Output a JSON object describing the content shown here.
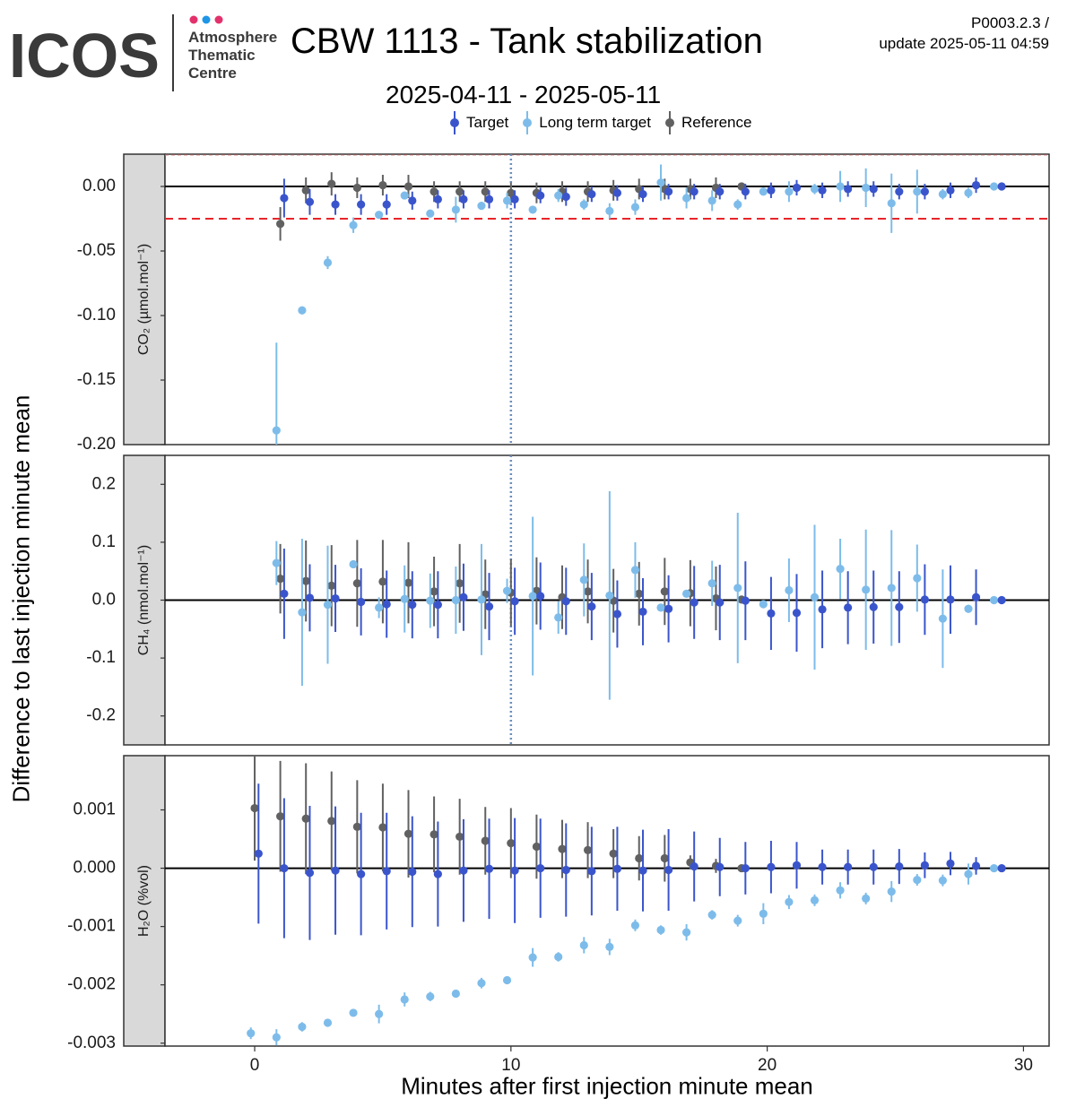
{
  "header": {
    "logo_text": "ICOS",
    "logo_dot_colors": [
      "#e2316b",
      "#1e96e6",
      "#e2316b"
    ],
    "logo_lines": [
      "Atmosphere",
      "Thematic",
      "Centre"
    ],
    "title": "CBW 1113 - Tank stabilization",
    "date_range": "2025-04-11 - 2025-05-11",
    "version": "P0003.2.3 /",
    "update": "update  2025-05-11 04:59"
  },
  "legend": [
    {
      "label": "Target",
      "color": "#3a55cc"
    },
    {
      "label": "Long term target",
      "color": "#7dbcea"
    },
    {
      "label": "Reference",
      "color": "#616161"
    }
  ],
  "chart_data": {
    "type": "scatter",
    "xlabel": "Minutes after first injection minute mean",
    "ylabel": "Difference to last injection minute mean",
    "xlim": [
      -3.5,
      31
    ],
    "x_ticks": [
      0,
      10,
      20,
      30
    ],
    "vline_x": 10,
    "series_offsets": {
      "Target": 0.15,
      "Long term target": -0.15,
      "Reference": 0
    },
    "panels": [
      {
        "name": "CO2",
        "strip_label": "CO₂ (µmol.mol⁻¹)",
        "ylim": [
          -0.2,
          0.025
        ],
        "ticks": [
          0.0,
          -0.05,
          -0.1,
          -0.15,
          -0.2
        ],
        "tick_labels": [
          "0.00",
          "-0.05",
          "-0.10",
          "-0.15",
          "-0.20"
        ],
        "threshold": -0.025,
        "series": [
          {
            "name": "Target",
            "x": [
              1,
              2,
              3,
              4,
              5,
              6,
              7,
              8,
              9,
              10,
              11,
              12,
              13,
              14,
              15,
              16,
              17,
              18,
              19,
              20,
              21,
              22,
              23,
              24,
              25,
              26,
              27,
              28,
              29
            ],
            "y": [
              -0.009,
              -0.012,
              -0.014,
              -0.014,
              -0.014,
              -0.011,
              -0.01,
              -0.01,
              -0.01,
              -0.01,
              -0.007,
              -0.008,
              -0.006,
              -0.005,
              -0.006,
              -0.004,
              -0.004,
              -0.004,
              -0.004,
              -0.003,
              -0.001,
              -0.003,
              -0.002,
              -0.002,
              -0.004,
              -0.004,
              -0.003,
              0.001,
              0.0
            ],
            "err": [
              0.015,
              0.01,
              0.008,
              0.008,
              0.008,
              0.007,
              0.007,
              0.007,
              0.007,
              0.007,
              0.006,
              0.007,
              0.006,
              0.006,
              0.006,
              0.006,
              0.006,
              0.006,
              0.006,
              0.006,
              0.006,
              0.006,
              0.006,
              0.006,
              0.006,
              0.006,
              0.006,
              0.006,
              0.0
            ]
          },
          {
            "name": "Long term target",
            "x": [
              1,
              2,
              3,
              4,
              5,
              6,
              7,
              8,
              9,
              10,
              11,
              12,
              13,
              14,
              15,
              16,
              17,
              18,
              19,
              20,
              21,
              22,
              23,
              24,
              25,
              26,
              27,
              28,
              29
            ],
            "y": [
              -0.189,
              -0.096,
              -0.059,
              -0.03,
              -0.022,
              -0.007,
              -0.021,
              -0.018,
              -0.015,
              -0.011,
              -0.018,
              -0.007,
              -0.014,
              -0.019,
              -0.016,
              0.003,
              -0.009,
              -0.011,
              -0.014,
              -0.004,
              -0.004,
              -0.002,
              0.0,
              -0.001,
              -0.013,
              -0.004,
              -0.006,
              -0.005,
              0.0
            ],
            "err": [
              0.068,
              0.003,
              0.005,
              0.006,
              0.003,
              0.003,
              0.003,
              0.01,
              0.003,
              0.006,
              0.003,
              0.005,
              0.004,
              0.006,
              0.006,
              0.014,
              0.008,
              0.008,
              0.004,
              0.003,
              0.008,
              0.004,
              0.012,
              0.015,
              0.023,
              0.017,
              0.004,
              0.004,
              0.0
            ]
          },
          {
            "name": "Reference",
            "x": [
              1,
              2,
              3,
              4,
              5,
              6,
              7,
              8,
              9,
              10,
              11,
              12,
              13,
              14,
              15,
              16,
              17,
              18,
              19
            ],
            "y": [
              -0.029,
              -0.003,
              0.002,
              -0.001,
              0.001,
              0.0,
              -0.004,
              -0.004,
              -0.004,
              -0.005,
              -0.005,
              -0.004,
              -0.004,
              -0.003,
              -0.002,
              -0.002,
              -0.002,
              -0.001,
              0.0
            ],
            "err": [
              0.013,
              0.01,
              0.009,
              0.008,
              0.008,
              0.009,
              0.008,
              0.008,
              0.008,
              0.008,
              0.008,
              0.008,
              0.008,
              0.008,
              0.008,
              0.008,
              0.008,
              0.008,
              0.003
            ]
          }
        ]
      },
      {
        "name": "CH4",
        "strip_label": "CH₄ (nmol.mol⁻¹)",
        "ylim": [
          -0.25,
          0.25
        ],
        "ticks": [
          0.2,
          0.1,
          0.0,
          -0.1,
          -0.2
        ],
        "tick_labels": [
          "0.2",
          "0.1",
          "0.0",
          "-0.1",
          "-0.2"
        ],
        "series": [
          {
            "name": "Target",
            "x": [
              1,
              2,
              3,
              4,
              5,
              6,
              7,
              8,
              9,
              10,
              11,
              12,
              13,
              14,
              15,
              16,
              17,
              18,
              19,
              20,
              21,
              22,
              23,
              24,
              25,
              26,
              27,
              28,
              29
            ],
            "y": [
              0.011,
              0.004,
              0.003,
              -0.003,
              -0.007,
              -0.008,
              -0.008,
              0.005,
              -0.011,
              -0.002,
              0.007,
              -0.002,
              -0.011,
              -0.024,
              -0.02,
              -0.015,
              -0.004,
              -0.004,
              -0.001,
              -0.023,
              -0.022,
              -0.016,
              -0.013,
              -0.012,
              -0.012,
              0.001,
              0.001,
              0.005,
              0.0
            ],
            "err": [
              0.078,
              0.058,
              0.058,
              0.058,
              0.058,
              0.058,
              0.058,
              0.058,
              0.058,
              0.058,
              0.058,
              0.058,
              0.058,
              0.058,
              0.058,
              0.058,
              0.063,
              0.065,
              0.068,
              0.063,
              0.067,
              0.067,
              0.063,
              0.063,
              0.062,
              0.061,
              0.059,
              0.048,
              0.0
            ]
          },
          {
            "name": "Long term target",
            "x": [
              1,
              2,
              3,
              4,
              5,
              6,
              7,
              8,
              9,
              10,
              11,
              12,
              13,
              14,
              15,
              16,
              17,
              18,
              19,
              20,
              21,
              22,
              23,
              24,
              25,
              26,
              27,
              28,
              29
            ],
            "y": [
              0.064,
              -0.021,
              -0.008,
              0.062,
              -0.013,
              0.002,
              -0.001,
              0.0,
              0.001,
              0.016,
              0.007,
              -0.03,
              0.035,
              0.008,
              0.052,
              -0.013,
              0.011,
              0.029,
              0.021,
              -0.007,
              0.017,
              0.005,
              0.054,
              0.018,
              0.021,
              0.038,
              -0.032,
              -0.015,
              0.0
            ],
            "err": [
              0.038,
              0.127,
              0.102,
              0.004,
              0.018,
              0.058,
              0.047,
              0.058,
              0.096,
              0.021,
              0.137,
              0.028,
              0.063,
              0.18,
              0.048,
              0.004,
              0.004,
              0.039,
              0.13,
              0.007,
              0.055,
              0.125,
              0.052,
              0.104,
              0.1,
              0.058,
              0.085,
              0.007,
              0.0
            ]
          },
          {
            "name": "Reference",
            "x": [
              1,
              2,
              3,
              4,
              5,
              6,
              7,
              8,
              9,
              10,
              11,
              12,
              13,
              14,
              15,
              16,
              17,
              18,
              19
            ],
            "y": [
              0.037,
              0.033,
              0.025,
              0.029,
              0.032,
              0.03,
              0.015,
              0.029,
              0.01,
              0.013,
              0.016,
              0.005,
              0.015,
              -0.001,
              0.011,
              0.015,
              0.012,
              0.003,
              0.001
            ],
            "err": [
              0.06,
              0.07,
              0.07,
              0.075,
              0.072,
              0.07,
              0.06,
              0.068,
              0.06,
              0.058,
              0.058,
              0.055,
              0.055,
              0.055,
              0.055,
              0.058,
              0.057,
              0.055,
              0.003
            ]
          }
        ]
      },
      {
        "name": "H2O",
        "strip_label": "H₂O (%vol)",
        "ylim": [
          -0.00305,
          0.00193
        ],
        "ticks": [
          0.001,
          0.0,
          -0.001,
          -0.002,
          -0.003
        ],
        "tick_labels": [
          "0.001",
          "0.000",
          "-0.001",
          "-0.002",
          "-0.003"
        ],
        "series": [
          {
            "name": "Target",
            "x": [
              0,
              1,
              2,
              3,
              4,
              5,
              6,
              7,
              8,
              9,
              10,
              11,
              12,
              13,
              14,
              15,
              16,
              17,
              18,
              19,
              20,
              21,
              22,
              23,
              24,
              25,
              26,
              27,
              28,
              29
            ],
            "y": [
              0.00025,
              0.0,
              -8e-05,
              -4e-05,
              -0.0001,
              -5e-05,
              -6e-05,
              -0.0001,
              -4e-05,
              -1e-05,
              -4e-05,
              0.0,
              -3e-05,
              -5e-05,
              -1e-05,
              -4e-05,
              -3e-05,
              3e-05,
              2e-05,
              0.0,
              2e-05,
              5e-05,
              2e-05,
              2e-05,
              2e-05,
              3e-05,
              5e-05,
              8e-05,
              4e-05,
              0.0
            ],
            "err": [
              0.0012,
              0.0012,
              0.00115,
              0.0011,
              0.00105,
              0.001,
              0.00095,
              0.0009,
              0.00088,
              0.00086,
              0.0009,
              0.00085,
              0.0008,
              0.00076,
              0.00072,
              0.0007,
              0.0007,
              0.0006,
              0.0005,
              0.00045,
              0.00045,
              0.0004,
              0.0003,
              0.0003,
              0.0003,
              0.0003,
              0.00022,
              0.0002,
              0.00015,
              0.0
            ]
          },
          {
            "name": "Long term target",
            "x": [
              0,
              1,
              2,
              3,
              4,
              5,
              6,
              7,
              8,
              9,
              10,
              11,
              12,
              13,
              14,
              15,
              16,
              17,
              18,
              19,
              20,
              21,
              22,
              23,
              24,
              25,
              26,
              27,
              28,
              29
            ],
            "y": [
              -0.00283,
              -0.0029,
              -0.00272,
              -0.00265,
              -0.00248,
              -0.0025,
              -0.00225,
              -0.0022,
              -0.00215,
              -0.00197,
              -0.00192,
              -0.00153,
              -0.00152,
              -0.00132,
              -0.00135,
              -0.00098,
              -0.00106,
              -0.0011,
              -0.0008,
              -0.0009,
              -0.00078,
              -0.00058,
              -0.00055,
              -0.00038,
              -0.00052,
              -0.0004,
              -0.0002,
              -0.00021,
              -0.0001,
              0.0
            ],
            "err": [
              0.0001,
              0.00014,
              8e-05,
              4e-05,
              4e-05,
              0.00016,
              0.00012,
              8e-05,
              4e-05,
              9e-05,
              4e-05,
              0.00016,
              8e-05,
              0.00014,
              0.00014,
              0.0001,
              8e-05,
              0.00014,
              8e-05,
              0.0001,
              0.00018,
              0.00012,
              0.0001,
              0.00014,
              0.0001,
              0.00018,
              0.0001,
              0.0001,
              0.00018,
              0.0
            ]
          },
          {
            "name": "Reference",
            "x": [
              0,
              1,
              2,
              3,
              4,
              5,
              6,
              7,
              8,
              9,
              10,
              11,
              12,
              13,
              14,
              15,
              16,
              17,
              18,
              19
            ],
            "y": [
              0.00103,
              0.00089,
              0.00085,
              0.00081,
              0.00071,
              0.0007,
              0.00059,
              0.00058,
              0.00054,
              0.00047,
              0.00043,
              0.00037,
              0.00033,
              0.00031,
              0.00025,
              0.00017,
              0.00017,
              0.0001,
              4e-05,
              0.0
            ],
            "err": [
              0.0009,
              0.00095,
              0.00095,
              0.00085,
              0.0008,
              0.00075,
              0.00075,
              0.00065,
              0.00065,
              0.00058,
              0.0006,
              0.00055,
              0.0005,
              0.00048,
              0.00042,
              0.00038,
              0.0004,
              0.00012,
              0.00012,
              5e-05
            ]
          }
        ]
      }
    ]
  }
}
